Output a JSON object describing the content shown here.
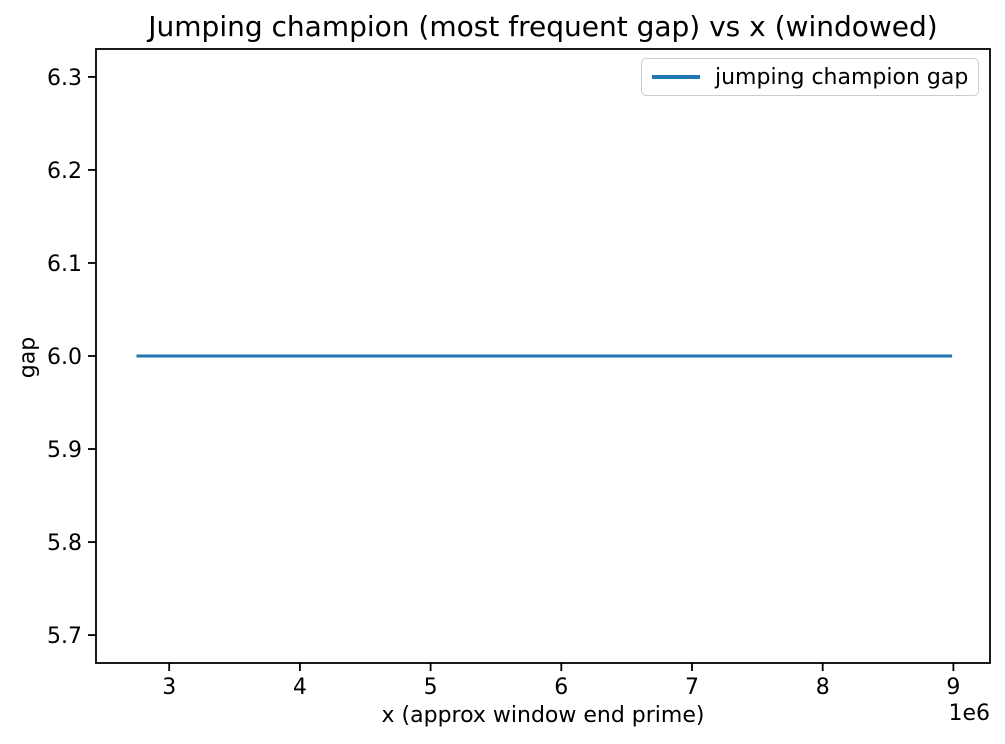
{
  "figure": {
    "background": "#ffffff",
    "axes_edge_color": "#000000"
  },
  "chart_data": {
    "type": "line",
    "title": "Jumping champion (most frequent gap) vs x (windowed)",
    "xlabel": "x (approx window end prime)",
    "ylabel": "gap",
    "x_offset_label": "1e6",
    "grid": false,
    "xlim": [
      2440000,
      9280000
    ],
    "ylim": [
      5.67,
      6.33
    ],
    "xticks": {
      "values": [
        3000000,
        4000000,
        5000000,
        6000000,
        7000000,
        8000000,
        9000000
      ],
      "labels": [
        "3",
        "4",
        "5",
        "6",
        "7",
        "8",
        "9"
      ]
    },
    "yticks": {
      "values": [
        5.7,
        5.8,
        5.9,
        6.0,
        6.1,
        6.2,
        6.3
      ],
      "labels": [
        "5.7",
        "5.8",
        "5.9",
        "6.0",
        "6.1",
        "6.2",
        "6.3"
      ]
    },
    "legend": {
      "position": "upper right",
      "entries": [
        {
          "label": "jumping champion gap",
          "color": "#1f77b4"
        }
      ]
    },
    "series": [
      {
        "name": "jumping champion gap",
        "color": "#1f77b4",
        "line_width": 3,
        "constant_value": 6.0,
        "x": [
          2750000,
          8990000
        ],
        "y": [
          6.0,
          6.0
        ]
      }
    ]
  }
}
